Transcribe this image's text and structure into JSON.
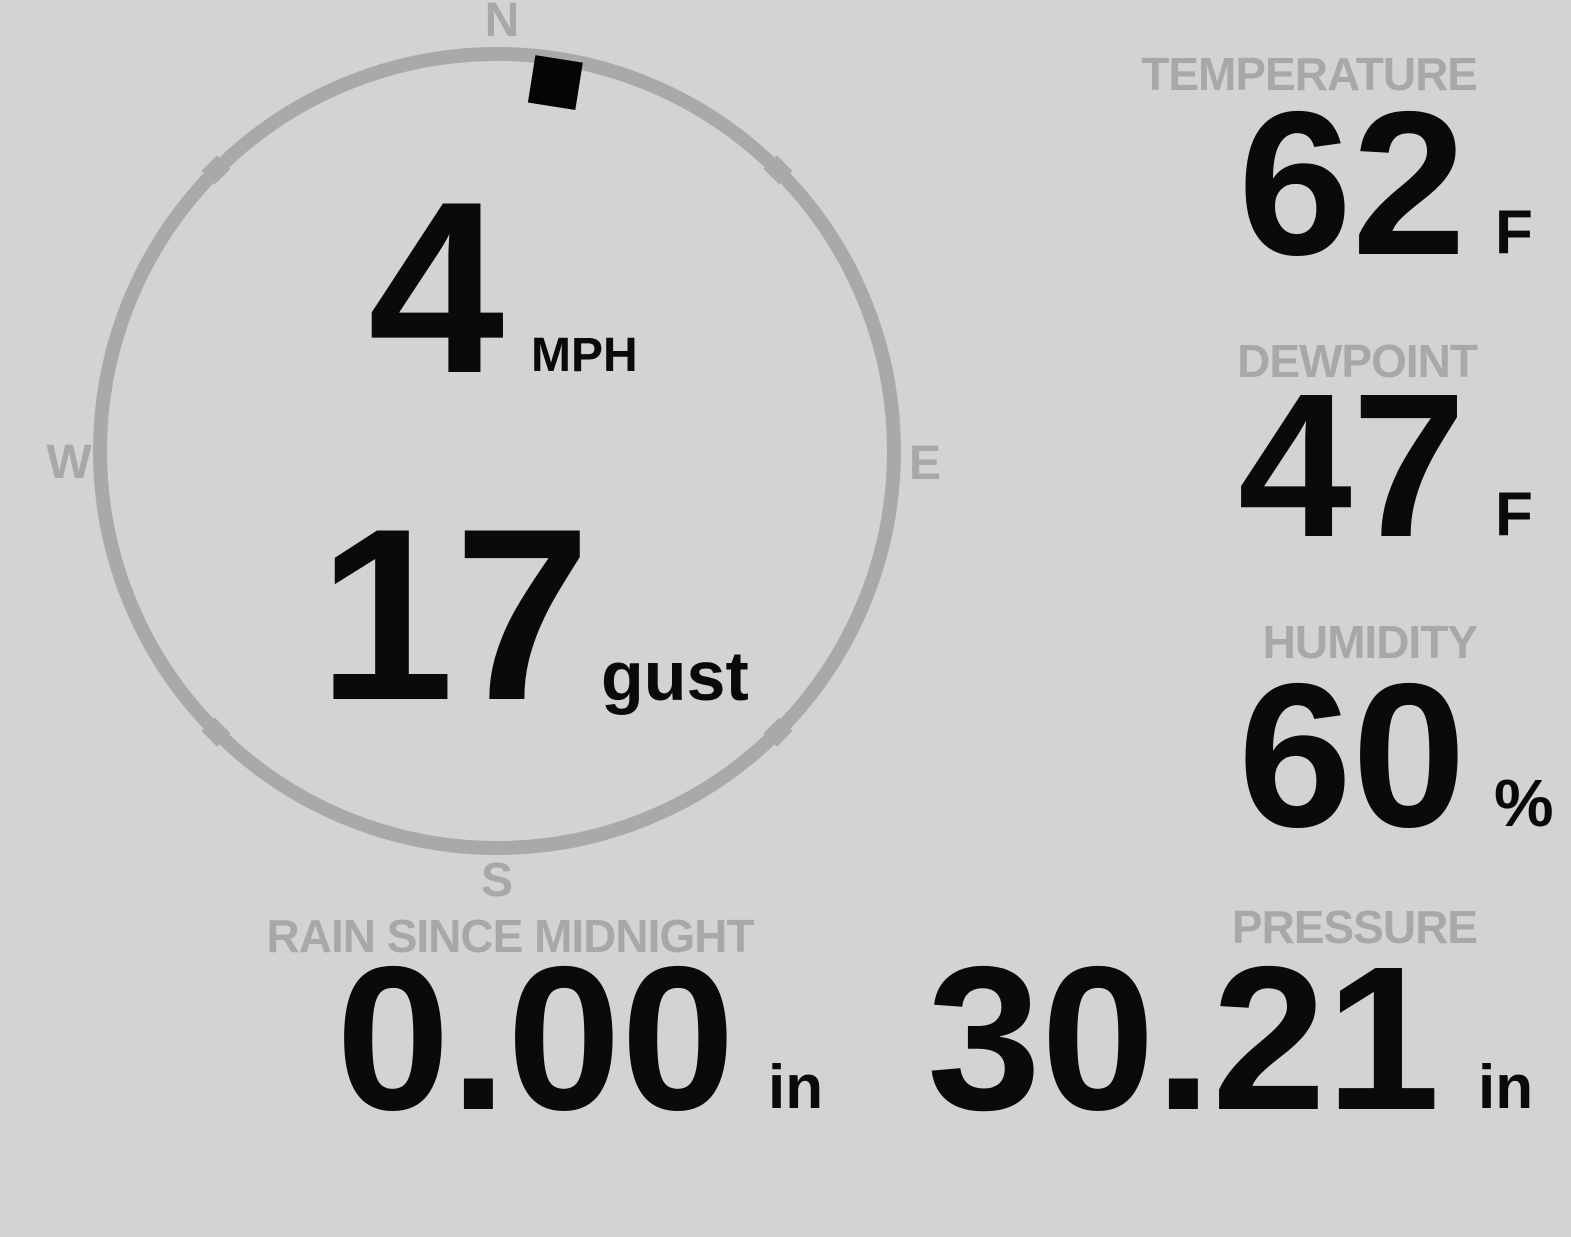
{
  "colors": {
    "background": "#d3d3d3",
    "muted_gray": "#a8a8a8",
    "ring_gray": "#a9a9a9",
    "ink_black": "#0a0a0a"
  },
  "wind": {
    "speed_value": "4",
    "speed_unit": "MPH",
    "gust_value": "17",
    "gust_label": "gust",
    "direction_degrees_from_north": 9,
    "compass": {
      "north": "N",
      "south": "S",
      "east": "E",
      "west": "W"
    }
  },
  "metrics": {
    "temperature": {
      "label": "TEMPERATURE",
      "value": "62",
      "unit": "F"
    },
    "dewpoint": {
      "label": "DEWPOINT",
      "value": "47",
      "unit": "F"
    },
    "humidity": {
      "label": "HUMIDITY",
      "value": "60",
      "unit": "%"
    },
    "rain": {
      "label": "RAIN SINCE MIDNIGHT",
      "value": "0.00",
      "unit": "in"
    },
    "pressure": {
      "label": "PRESSURE",
      "value": "30.21",
      "unit": "in"
    }
  }
}
